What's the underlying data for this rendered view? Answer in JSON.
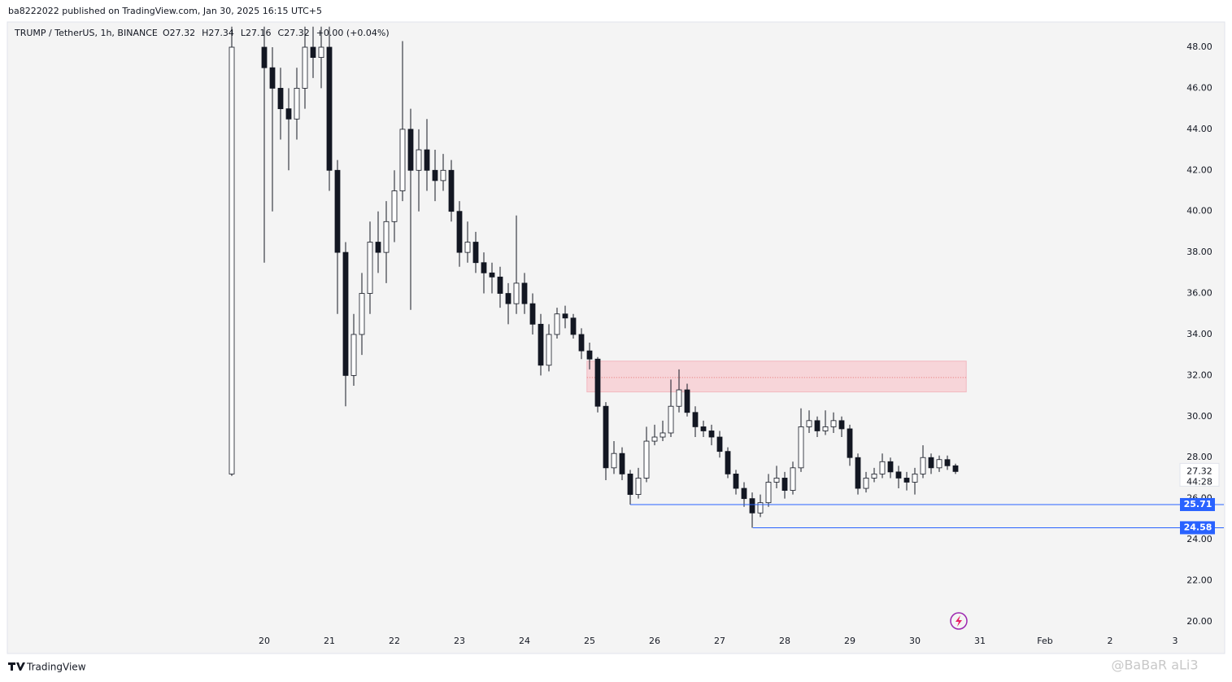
{
  "chart_data": {
    "type": "candlestick",
    "header": "ba8222022 published on TradingView.com, Jan 30, 2025 16:15 UTC+5",
    "title": "TRUMP / TetherUS, 1h, BINANCE",
    "header_values": [
      "O27.32",
      "H27.34",
      "L27.16",
      "C27.32",
      "+0.00 (+0.04%)"
    ],
    "footer": "TradingView",
    "watermark": "@BaBaR aLi3",
    "x": [
      19.5,
      20,
      20.125,
      20.25,
      20.375,
      20.5,
      20.625,
      20.75,
      20.875,
      21,
      21.125,
      21.25,
      21.375,
      21.5,
      21.625,
      21.75,
      21.875,
      22,
      22.125,
      22.25,
      22.375,
      22.5,
      22.625,
      22.75,
      22.875,
      23,
      23.125,
      23.25,
      23.375,
      23.5,
      23.625,
      23.75,
      23.875,
      24,
      24.125,
      24.25,
      24.375,
      24.5,
      24.625,
      24.75,
      24.875,
      25,
      25.125,
      25.25,
      25.375,
      25.5,
      25.625,
      25.75,
      25.875,
      26,
      26.125,
      26.25,
      26.375,
      26.5,
      26.625,
      26.75,
      26.875,
      27,
      27.125,
      27.25,
      27.375,
      27.5,
      27.625,
      27.75,
      27.875,
      28,
      28.125,
      28.25,
      28.375,
      28.5,
      28.625,
      28.75,
      28.875,
      29,
      29.125,
      29.25,
      29.375,
      29.5,
      29.625,
      29.75,
      29.875,
      30,
      30.125,
      30.25,
      30.375,
      30.5,
      30.625
    ],
    "open": [
      27.2,
      48,
      47,
      46,
      45,
      44.5,
      46,
      48,
      47.5,
      48,
      42,
      38,
      32,
      34,
      36,
      38.5,
      38,
      39.5,
      41,
      44,
      42,
      43,
      42,
      41.5,
      42,
      40,
      38,
      38.5,
      37.5,
      37,
      36.8,
      36,
      35.5,
      36.5,
      35.5,
      34.5,
      32.5,
      34,
      35,
      34.8,
      34,
      33.2,
      32.8,
      30.5,
      27.5,
      28.2,
      27.2,
      26.2,
      27,
      28.8,
      29,
      29.2,
      30.5,
      31.3,
      30.2,
      29.5,
      29.3,
      29,
      28.3,
      27.2,
      26.5,
      26,
      25.3,
      25.8,
      26.8,
      27,
      26.4,
      27.5,
      29.5,
      29.8,
      29.3,
      29.5,
      29.8,
      29.4,
      28,
      26.5,
      27,
      27.2,
      27.8,
      27.3,
      27,
      26.8,
      27.2,
      28,
      27.5,
      27.9,
      27.6
    ],
    "high": [
      49,
      49,
      48,
      47,
      46,
      47,
      49,
      49,
      49,
      49,
      42.5,
      38.5,
      35,
      37,
      39.5,
      40,
      40.5,
      42,
      48.3,
      45,
      44,
      44.5,
      43,
      42.8,
      42.5,
      40.5,
      39.5,
      39,
      38,
      37.5,
      37.3,
      36.5,
      39.8,
      37,
      36,
      35,
      34.5,
      35.3,
      35.4,
      35,
      34.3,
      33.6,
      32.9,
      30.7,
      28.8,
      28.5,
      27.4,
      27.5,
      29.5,
      29.6,
      29.8,
      31.8,
      32.3,
      31.6,
      30.5,
      29.8,
      29.6,
      29.3,
      28.5,
      27.4,
      26.8,
      26.3,
      26.2,
      27.2,
      27.6,
      27.3,
      27.8,
      30.4,
      30.3,
      30,
      30.3,
      30.2,
      30,
      29.6,
      28.2,
      27.3,
      27.5,
      28.2,
      28,
      27.6,
      27.3,
      27.5,
      28.6,
      28.2,
      28.1,
      28.1,
      27.7
    ],
    "low": [
      27.1,
      37.5,
      40,
      43.5,
      42,
      43.5,
      45,
      46.5,
      46,
      41,
      35,
      30.5,
      31.5,
      33,
      35,
      37,
      36.5,
      38.5,
      40.5,
      35.2,
      40,
      41,
      40.5,
      41,
      39.5,
      37.3,
      37.5,
      37,
      36,
      36,
      35.3,
      34.5,
      35,
      35,
      34,
      32,
      32.2,
      33.8,
      34.3,
      33.8,
      32.8,
      32.3,
      30.2,
      26.9,
      27.2,
      26.9,
      25.71,
      26,
      26.8,
      28.6,
      28.8,
      29,
      30.2,
      30,
      29,
      29,
      28.6,
      28,
      27,
      26.2,
      25.6,
      24.58,
      25.1,
      25.6,
      26.5,
      26,
      26.2,
      27.3,
      29.2,
      29,
      29.1,
      29.2,
      29,
      27.6,
      26.2,
      26.3,
      26.8,
      27,
      27,
      26.5,
      26.4,
      26.2,
      27,
      27.2,
      27.3,
      27.4,
      27.2
    ],
    "close": [
      48,
      47,
      46,
      45,
      44.5,
      46,
      48,
      47.5,
      48,
      42,
      38,
      32,
      34,
      36,
      38.5,
      38,
      39.5,
      41,
      44,
      42,
      43,
      42,
      41.5,
      42,
      40,
      38,
      38.5,
      37.5,
      37,
      36.8,
      36,
      35.5,
      36.5,
      35.5,
      34.5,
      32.5,
      34,
      35,
      34.8,
      34,
      33.2,
      32.8,
      30.5,
      27.5,
      28.2,
      27.2,
      26.2,
      27,
      28.8,
      29,
      29.2,
      30.5,
      31.3,
      30.2,
      29.5,
      29.3,
      29,
      28.3,
      27.2,
      26.5,
      26,
      25.3,
      25.8,
      26.8,
      27,
      26.4,
      27.5,
      29.5,
      29.8,
      29.3,
      29.5,
      29.8,
      29.4,
      28,
      26.5,
      27,
      27.2,
      27.8,
      27.3,
      27,
      26.8,
      27.2,
      28,
      27.5,
      27.9,
      27.6,
      27.32
    ],
    "up_color": "#ffffff",
    "down_color": "#131722",
    "wick_color": "#131722",
    "xlim": [
      16.0625,
      34.0625
    ],
    "xticks": [
      20,
      21,
      22,
      23,
      24,
      25,
      26,
      27,
      28,
      29,
      30,
      31,
      {
        "value": 32,
        "label": "Feb"
      },
      {
        "value": 33,
        "label": "2"
      },
      {
        "value": 34,
        "label": "3"
      }
    ],
    "ylim": [
      18.45,
      49.19
    ],
    "yticks": [
      {
        "value": 20,
        "label": "20.00"
      },
      {
        "value": 22,
        "label": "22.00"
      },
      {
        "value": 24,
        "label": "24.00"
      },
      {
        "value": 26,
        "label": "26.00"
      },
      {
        "value": 28,
        "label": "28.00"
      },
      {
        "value": 30,
        "label": "30.00"
      },
      {
        "value": 32,
        "label": "32.00"
      },
      {
        "value": 34,
        "label": "34.00"
      },
      {
        "value": 36,
        "label": "36.00"
      },
      {
        "value": 38,
        "label": "38.00"
      },
      {
        "value": 40,
        "label": "40.00"
      },
      {
        "value": 42,
        "label": "42.00"
      },
      {
        "value": 44,
        "label": "44.00"
      },
      {
        "value": 46,
        "label": "46.00"
      },
      {
        "value": 48,
        "label": "48.00"
      }
    ],
    "zone": {
      "x": [
        24.96,
        30.79
      ],
      "y": [
        31.2,
        32.7
      ],
      "mid": 31.9,
      "color": "#f7d5d9"
    },
    "levels": [
      {
        "value": 25.71,
        "x": 25.625,
        "color": "#2962ff"
      },
      {
        "value": 24.58,
        "x": 27.51,
        "color": "#2962ff"
      }
    ],
    "last_price": 27.32,
    "countdown": "44:28"
  }
}
